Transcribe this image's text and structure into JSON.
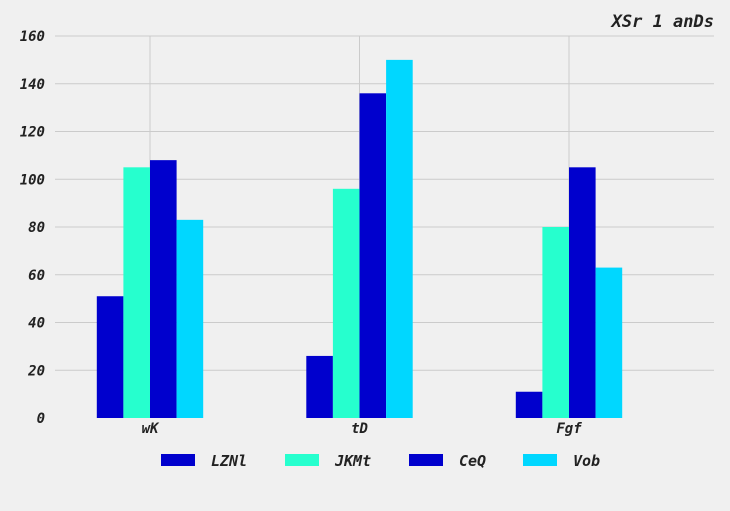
{
  "chart_data": {
    "type": "bar",
    "title": "XSr  1 anDs",
    "xlabel": "",
    "ylabel": "",
    "categories": [
      "wK",
      "tD",
      "Fgf"
    ],
    "series": [
      {
        "name": "LZNl",
        "color": "#0000cd",
        "values": [
          51,
          26,
          11
        ]
      },
      {
        "name": "JKMt",
        "color": "#26ffce",
        "values": [
          105,
          96,
          80
        ]
      },
      {
        "name": "CeQ",
        "color": "#0000cd",
        "values": [
          108,
          136,
          105
        ]
      },
      {
        "name": "Vob",
        "color": "#00d7ff",
        "values": [
          83,
          150,
          63
        ]
      }
    ],
    "ylim": [
      0,
      160
    ],
    "yticks": [
      0,
      20,
      40,
      60,
      80,
      100,
      120,
      140,
      160
    ],
    "grid": true,
    "legend_position": "bottom-center"
  }
}
